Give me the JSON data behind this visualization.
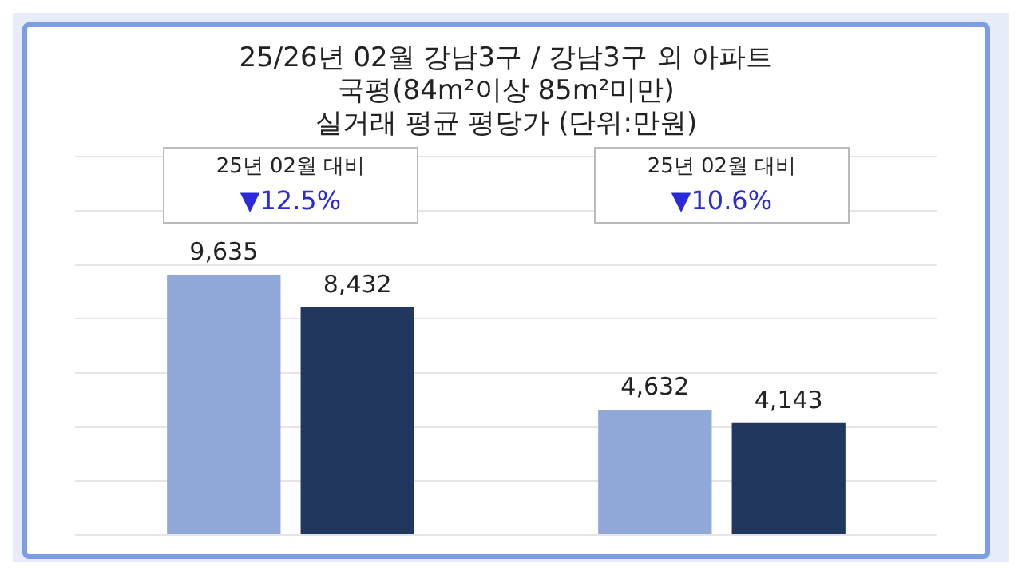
{
  "chart_data": {
    "type": "bar",
    "title": [
      "25/26년 02월 강남3구 / 강남3구 외 아파트",
      "국평(84m²이상 85m²미만)",
      "실거래 평균 평당가 (단위:만원)"
    ],
    "categories": [
      null,
      null
    ],
    "series": [
      {
        "color": "#8fa8d8",
        "values": [
          9635,
          4632
        ],
        "value_labels": [
          "9,635",
          "4,632"
        ]
      },
      {
        "color": "#22375f",
        "values": [
          8432,
          4143
        ],
        "value_labels": [
          "8,432",
          "4,143"
        ]
      }
    ],
    "ylim": [
      0,
      14000
    ],
    "yticks": [
      0,
      2000,
      4000,
      6000,
      8000,
      10000,
      12000,
      14000
    ],
    "grid": "y",
    "tick_labels": false,
    "legend": false,
    "annotations": [
      "25년 02월 대비\n▼12.5%",
      "25년 02월 대비\n▼10.6%"
    ]
  }
}
